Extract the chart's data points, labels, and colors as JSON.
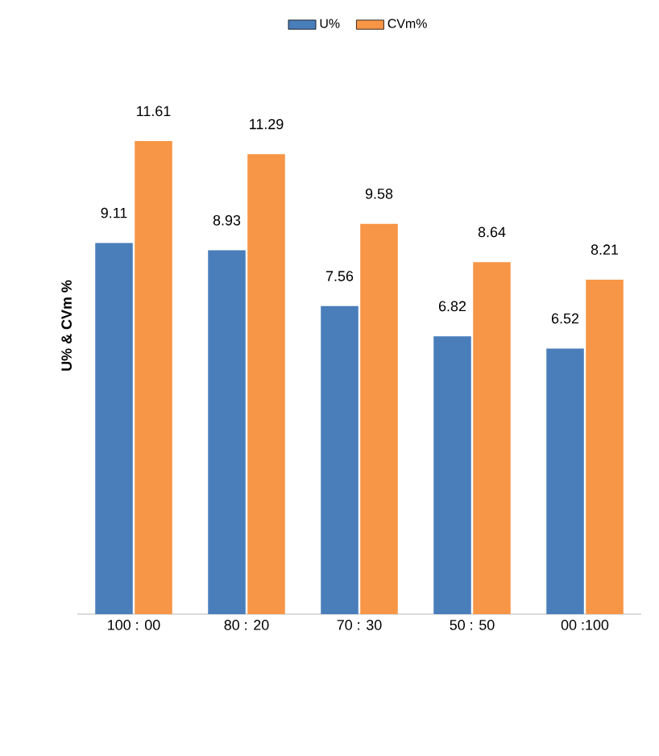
{
  "chart_data": {
    "type": "bar",
    "ylabel": "U% & CVm %",
    "categories": [
      "100 : 00",
      "80 : 20",
      "70 : 30",
      "50 : 50",
      "00 :100"
    ],
    "series": [
      {
        "name": "U%",
        "color": "#4a7ebb",
        "values": [
          9.11,
          8.93,
          7.56,
          6.82,
          6.52
        ]
      },
      {
        "name": "CVm%",
        "color": "#f79646",
        "values": [
          11.61,
          11.29,
          9.58,
          8.64,
          8.21
        ]
      }
    ],
    "data_labels": true,
    "legend": "top"
  }
}
